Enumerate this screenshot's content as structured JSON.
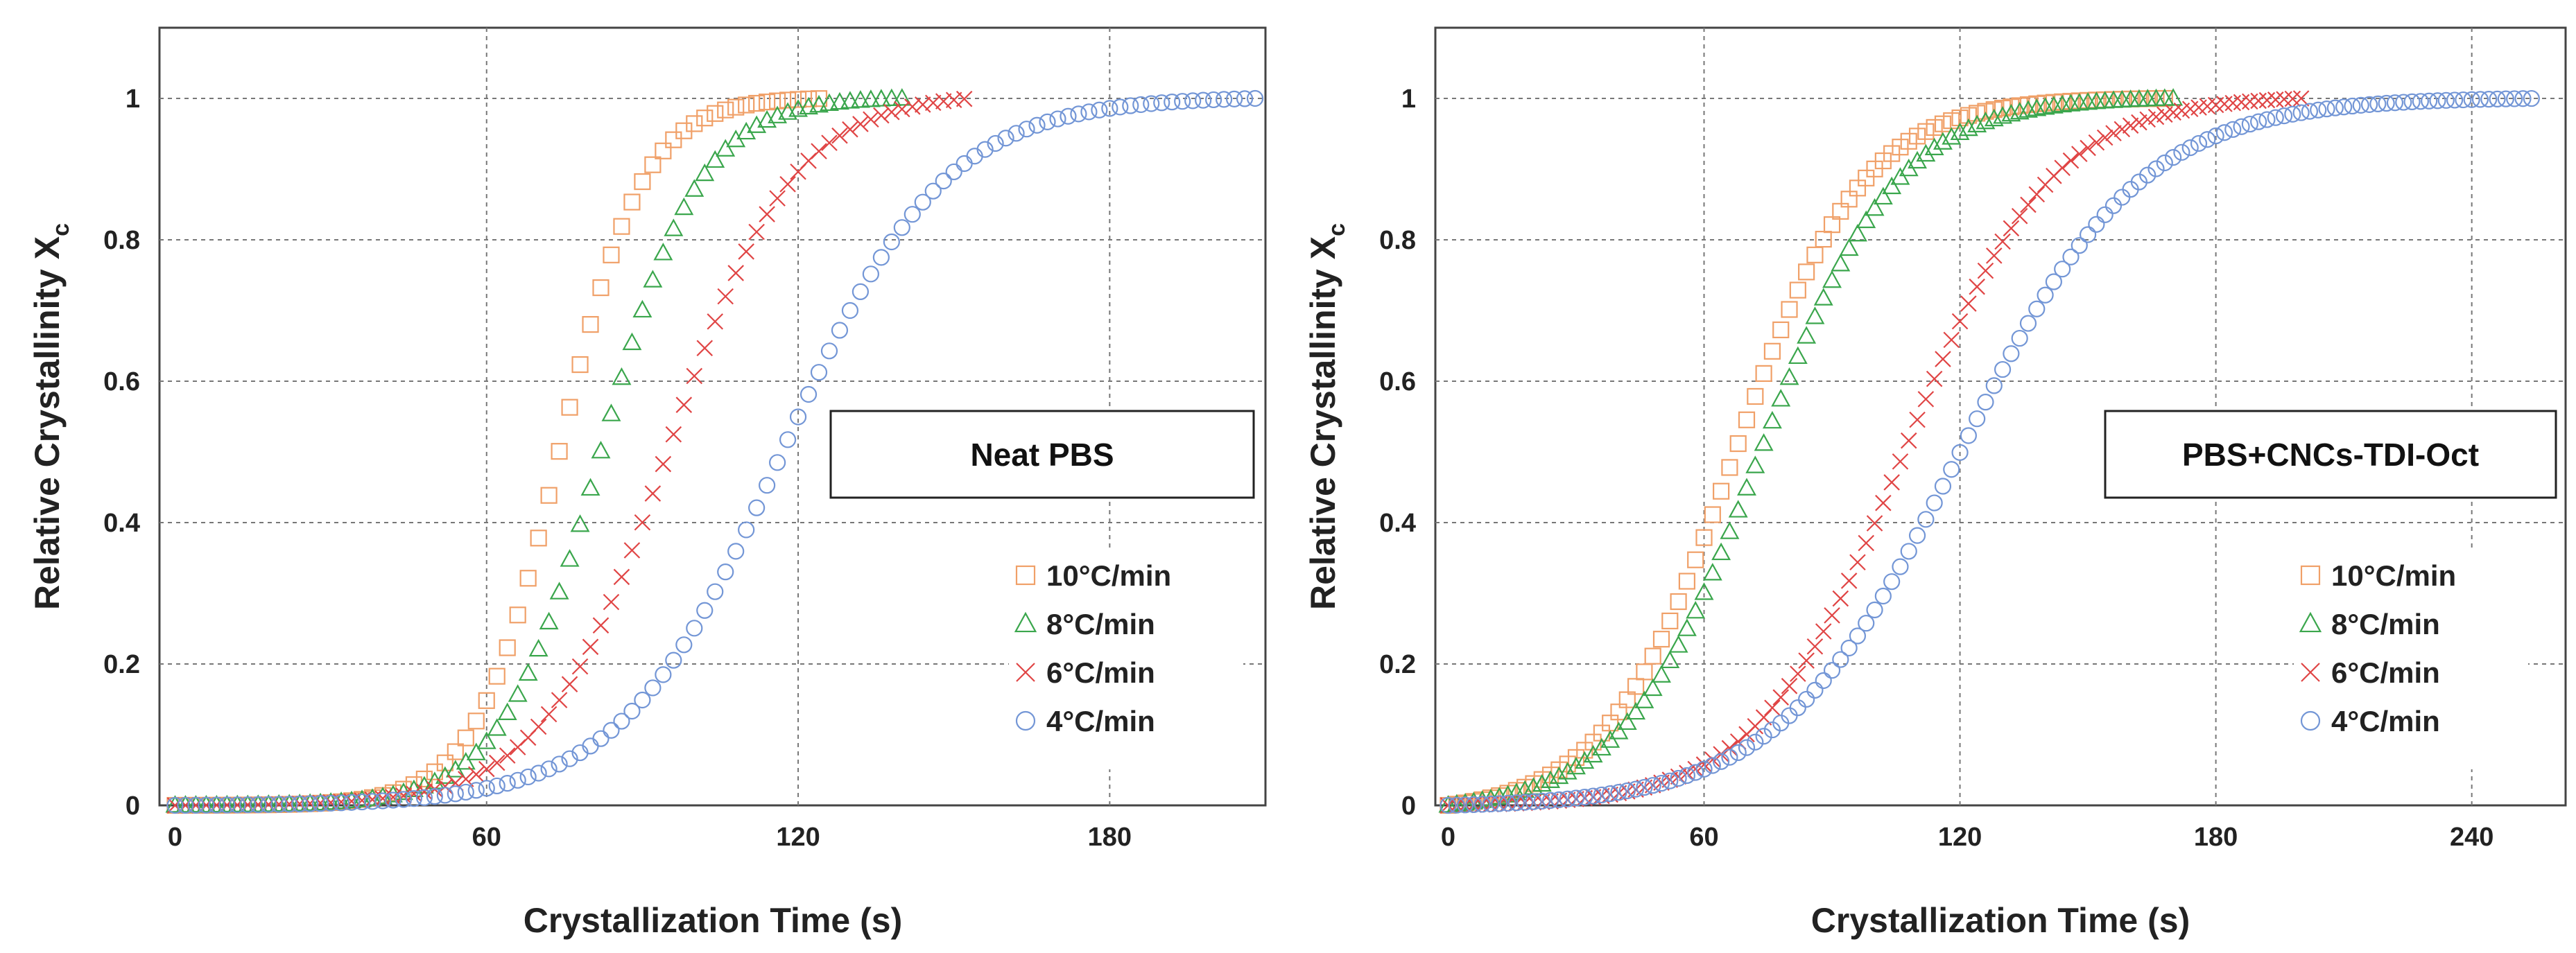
{
  "chart_data": [
    {
      "type": "scatter",
      "title": "",
      "annotation": "Neat PBS",
      "xlabel": "Crystallization Time (s)",
      "ylabel_main": "Relative Crystallinity X",
      "ylabel_sub": "c",
      "xlim": [
        -3,
        210
      ],
      "ylim": [
        0,
        1.1
      ],
      "xticks": [
        0,
        60,
        120,
        180
      ],
      "yticks": [
        0,
        0.2,
        0.4,
        0.6,
        0.8,
        1
      ],
      "ytick_labels": [
        "0",
        "0.2",
        "0.4",
        "0.6",
        "0.8",
        "1"
      ],
      "grid": true,
      "legend_position": "bottom-right",
      "series": [
        {
          "name": "10°C/min",
          "marker": "square",
          "color": "#f0a068",
          "t_half": 74,
          "width": 8,
          "t_end": 125,
          "step": 2
        },
        {
          "name": "8°C/min",
          "marker": "triangle",
          "color": "#3aa64c",
          "t_half": 82,
          "width": 9.5,
          "t_end": 140,
          "step": 2
        },
        {
          "name": "6°C/min",
          "marker": "x",
          "color": "#e04545",
          "t_half": 95,
          "width": 12,
          "t_end": 153,
          "step": 2
        },
        {
          "name": "4°C/min",
          "marker": "circle",
          "color": "#7396d6",
          "t_half": 117,
          "width": 15.5,
          "t_end": 208,
          "step": 2
        }
      ]
    },
    {
      "type": "scatter",
      "title": "",
      "annotation": "PBS+CNCs-TDI-Oct",
      "xlabel": "Crystallization Time (s)",
      "ylabel_main": "Relative Crystallinity X",
      "ylabel_sub": "c",
      "xlim": [
        -3,
        262
      ],
      "ylim": [
        0,
        1.1
      ],
      "xticks": [
        0,
        60,
        120,
        180,
        240
      ],
      "yticks": [
        0,
        0.2,
        0.4,
        0.6,
        0.8,
        1
      ],
      "ytick_labels": [
        "0",
        "0.2",
        "0.4",
        "0.6",
        "0.8",
        "1"
      ],
      "grid": true,
      "legend_position": "bottom-right",
      "series": [
        {
          "name": "10°C/min",
          "marker": "square",
          "color": "#f0a068",
          "t_half": 67,
          "width": 15,
          "t_end": 168,
          "step": 2
        },
        {
          "name": "8°C/min",
          "marker": "triangle",
          "color": "#3aa64c",
          "t_half": 73,
          "width": 16,
          "t_end": 170,
          "step": 2
        },
        {
          "name": "6°C/min",
          "marker": "x",
          "color": "#e04545",
          "t_half": 107,
          "width": 17,
          "t_end": 200,
          "step": 2
        },
        {
          "name": "4°C/min",
          "marker": "circle",
          "color": "#7396d6",
          "t_half": 120,
          "width": 21,
          "t_end": 255,
          "step": 2
        }
      ]
    }
  ]
}
